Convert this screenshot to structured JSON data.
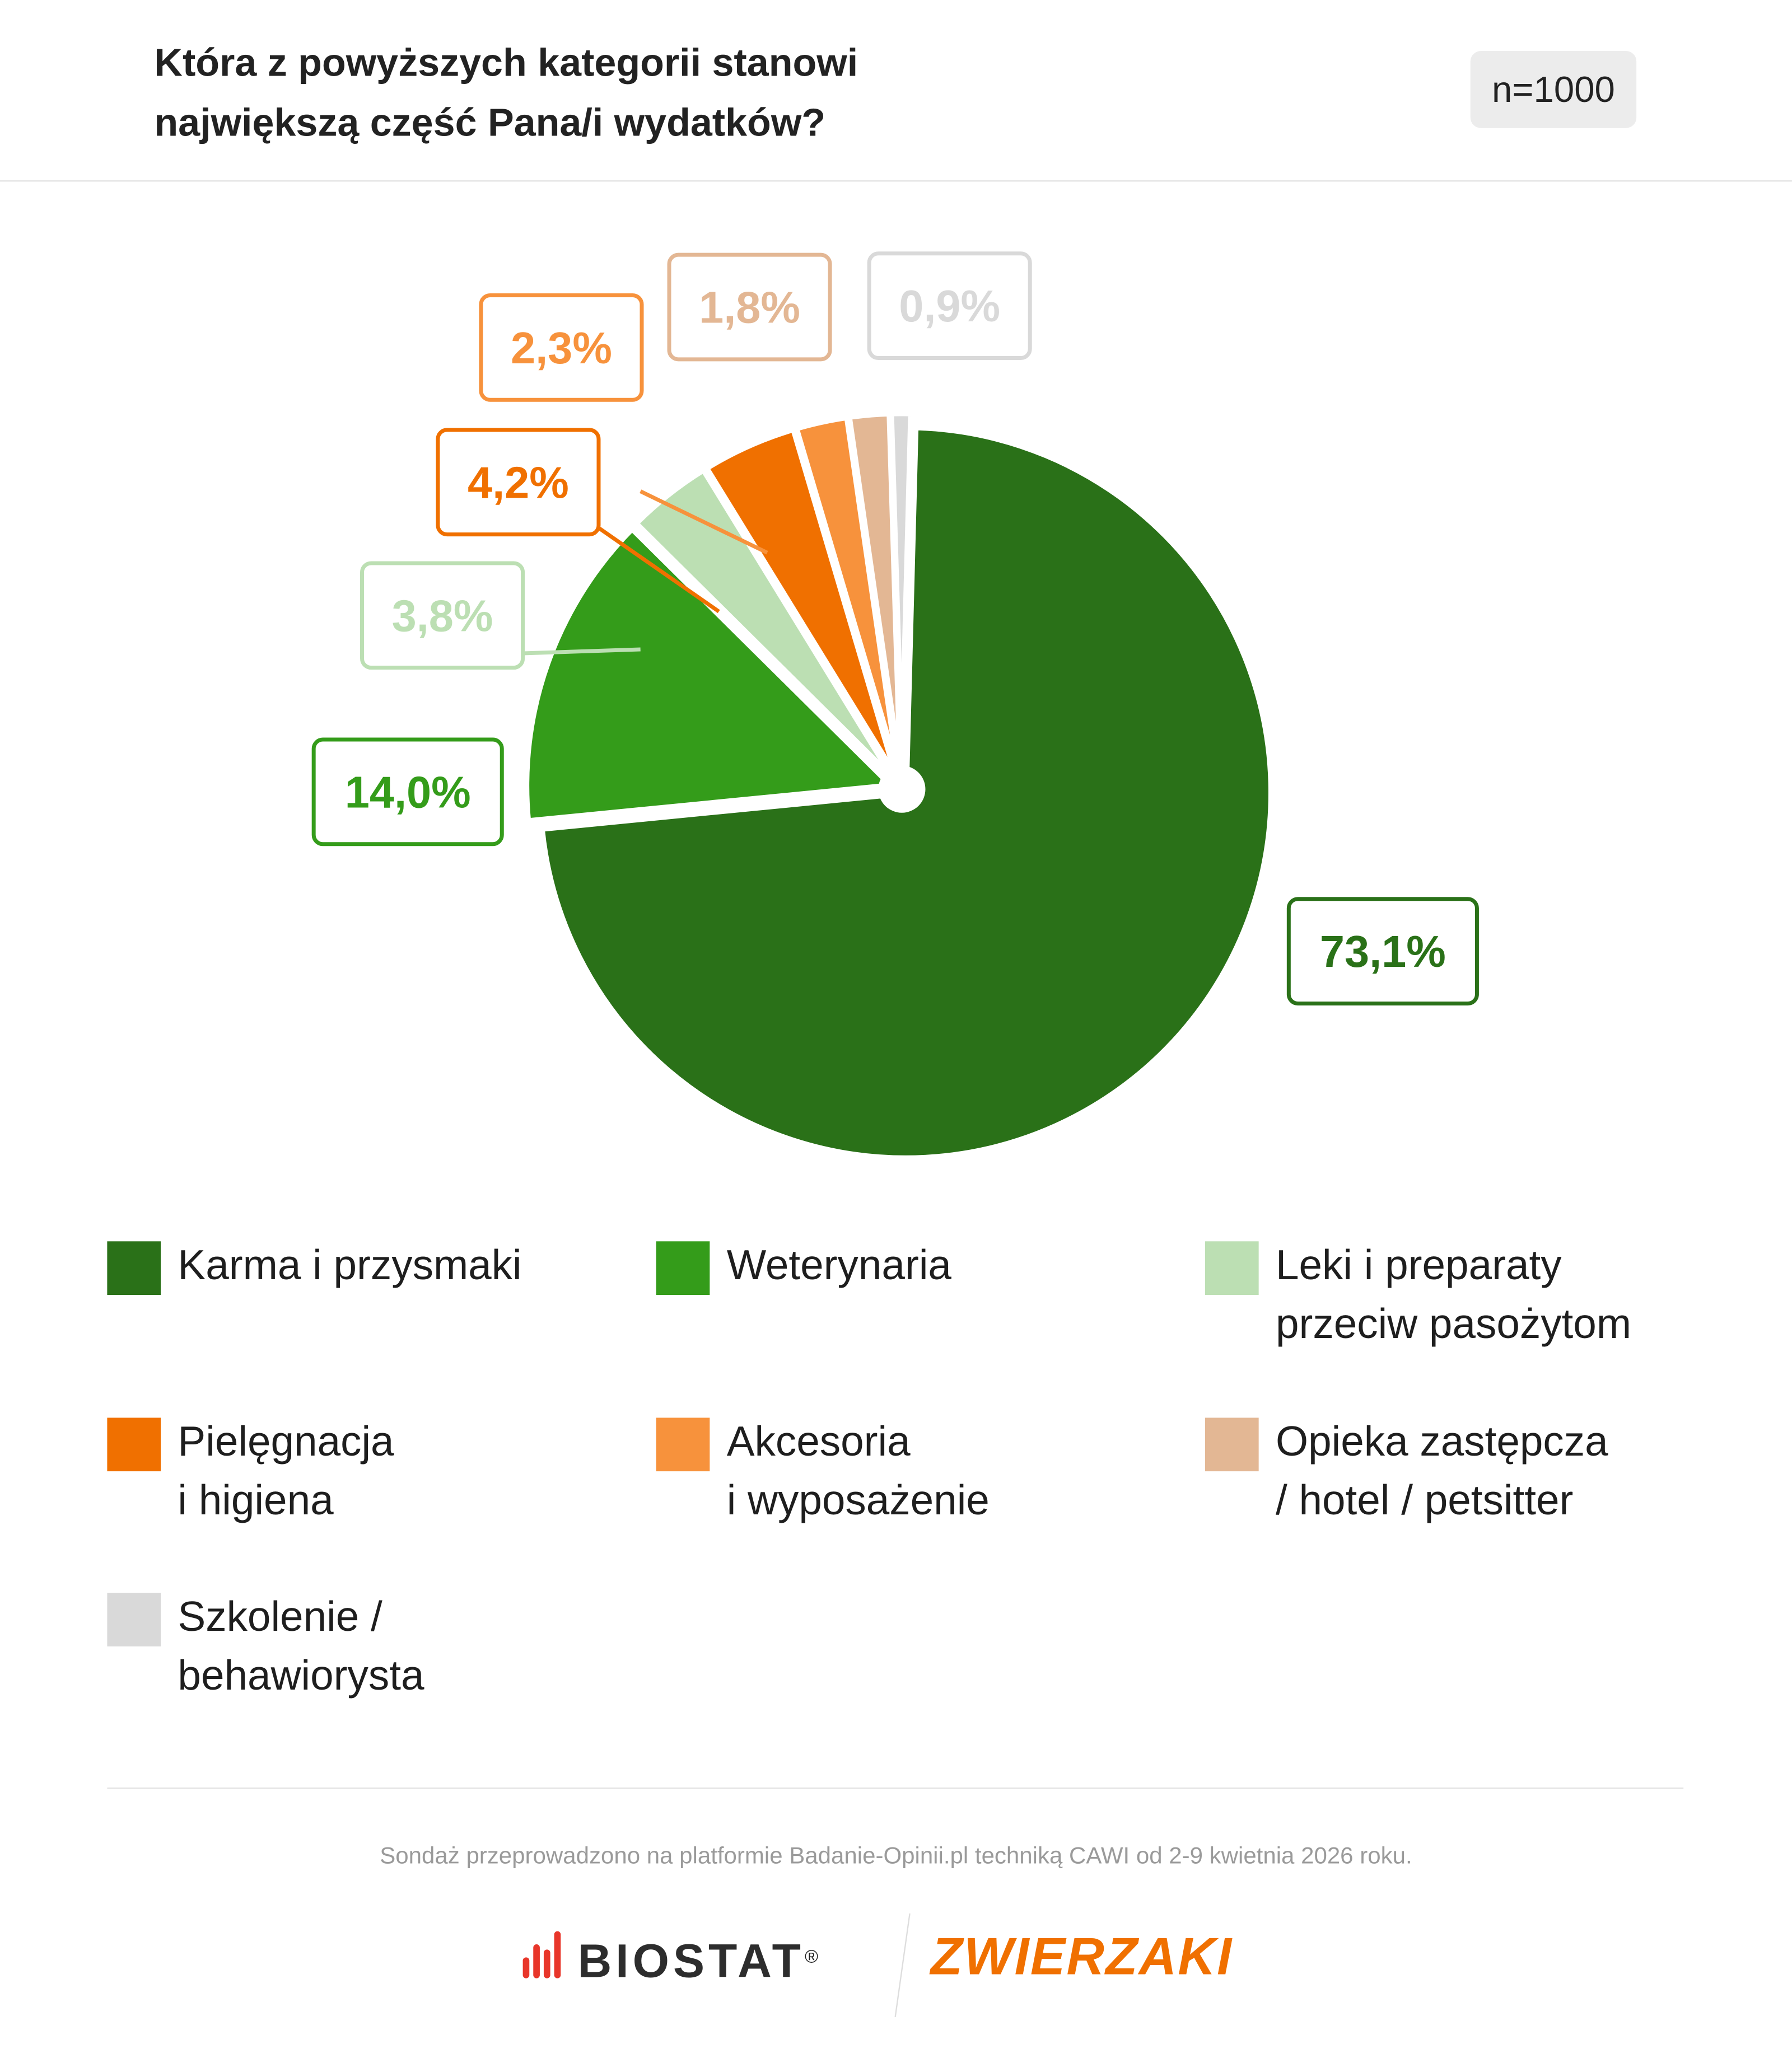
{
  "header": {
    "title_line1": "Która z powyższych kategorii stanowi",
    "title_line2": "największą część Pana/i wydatków?",
    "sample": "n=1000"
  },
  "chart_data": {
    "type": "pie",
    "title": "Która z powyższych kategorii stanowi największą część Pana/i wydatków?",
    "categories": [
      "Karma i przysmaki",
      "Weterynaria",
      "Leki i preparaty przeciw pasożytom",
      "Pielęgnacja i higiena",
      "Akcesoria i wyposażenie",
      "Opieka zastępcza / hotel / petsitter",
      "Szkolenie / behawiorysta"
    ],
    "values": [
      73.1,
      14.0,
      3.8,
      4.2,
      2.3,
      1.8,
      0.9
    ],
    "labels": [
      "73,1%",
      "14,0%",
      "3,8%",
      "4,2%",
      "2,3%",
      "1,8%",
      "0,9%"
    ],
    "colors": [
      "#2a7118",
      "#349c1a",
      "#bcdfb3",
      "#f07000",
      "#f7923c",
      "#e3b794",
      "#d9d9d9"
    ],
    "legend_position": "bottom"
  },
  "legend": [
    {
      "line1": "Karma i przysmaki",
      "line2": ""
    },
    {
      "line1": "Weterynaria",
      "line2": ""
    },
    {
      "line1": "Leki i preparaty",
      "line2": "przeciw pasożytom"
    },
    {
      "line1": "Pielęgnacja",
      "line2": "i higiena"
    },
    {
      "line1": "Akcesoria",
      "line2": "i wyposażenie"
    },
    {
      "line1": "Opieka zastępcza",
      "line2": "/ hotel / petsitter"
    },
    {
      "line1": "Szkolenie /",
      "line2": "behawiorysta"
    }
  ],
  "footer": {
    "note": "Sondaż przeprowadzono na platformie Badanie-Opinii.pl techniką CAWI od 2-9 kwietnia 2026 roku.",
    "logo1": "BIOSTAT",
    "logo1_mark": "®",
    "logo2": "ZWIERZAKI"
  }
}
